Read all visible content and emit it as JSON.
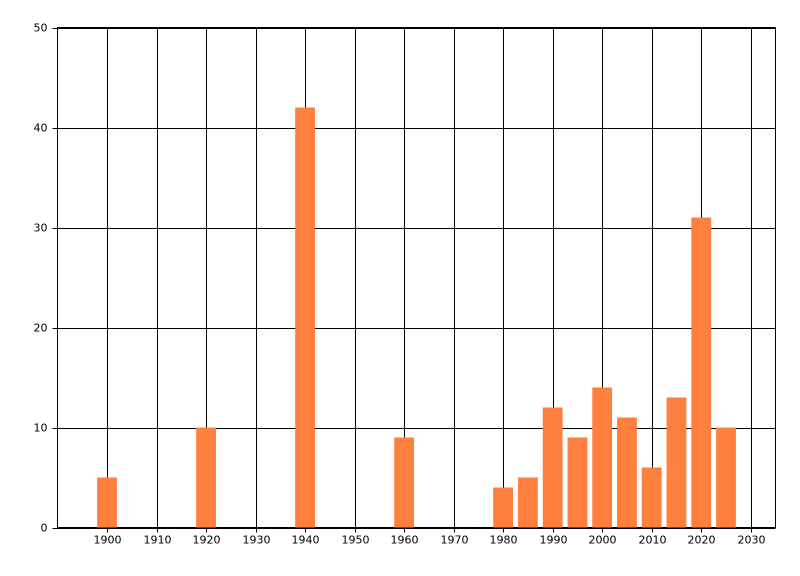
{
  "chart_data": {
    "type": "bar",
    "x": [
      1900,
      1920,
      1940,
      1960,
      1980,
      1985,
      1990,
      1995,
      2000,
      2005,
      2010,
      2015,
      2020,
      2025
    ],
    "values": [
      5,
      10,
      42,
      9,
      4,
      5,
      12,
      9,
      14,
      11,
      6,
      13,
      31,
      10
    ],
    "color": "#ff7f3f",
    "xlim": [
      1890,
      2035
    ],
    "xticks": [
      1900,
      1910,
      1920,
      1930,
      1940,
      1950,
      1960,
      1970,
      1980,
      1990,
      2000,
      2010,
      2020,
      2030
    ],
    "ylim": [
      0,
      50
    ],
    "yticks": [
      0,
      10,
      20,
      30,
      40,
      50
    ],
    "grid": true
  }
}
